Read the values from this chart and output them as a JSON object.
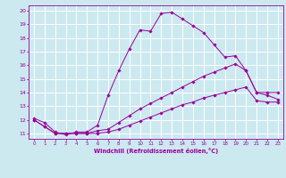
{
  "xlabel": "Windchill (Refroidissement éolien,°C)",
  "xlim": [
    -0.5,
    23.5
  ],
  "ylim": [
    10.6,
    20.4
  ],
  "xticks": [
    0,
    1,
    2,
    3,
    4,
    5,
    6,
    7,
    8,
    9,
    10,
    11,
    12,
    13,
    14,
    15,
    16,
    17,
    18,
    19,
    20,
    21,
    22,
    23
  ],
  "yticks": [
    11,
    12,
    13,
    14,
    15,
    16,
    17,
    18,
    19,
    20
  ],
  "bg_color": "#cce9f0",
  "line_color": "#990099",
  "grid_color": "#ffffff",
  "lines": [
    {
      "x": [
        0,
        1,
        2,
        3,
        4,
        5,
        6,
        7,
        8,
        9,
        10,
        11,
        12,
        13,
        14,
        15,
        16,
        17,
        18,
        19,
        20,
        21,
        22,
        23
      ],
      "y": [
        12.1,
        11.8,
        11.1,
        10.9,
        11.1,
        11.1,
        11.6,
        13.8,
        15.6,
        17.2,
        18.6,
        18.5,
        19.8,
        19.9,
        19.4,
        18.9,
        18.4,
        17.5,
        16.6,
        16.7,
        15.6,
        14.0,
        14.0,
        14.0
      ]
    },
    {
      "x": [
        0,
        1,
        2,
        3,
        4,
        5,
        6,
        7,
        8,
        9,
        10,
        11,
        12,
        13,
        14,
        15,
        16,
        17,
        18,
        19,
        20,
        21,
        22,
        23
      ],
      "y": [
        12.0,
        11.5,
        11.0,
        11.0,
        11.0,
        11.0,
        11.2,
        11.3,
        11.8,
        12.3,
        12.8,
        13.2,
        13.6,
        14.0,
        14.4,
        14.8,
        15.2,
        15.5,
        15.8,
        16.1,
        15.6,
        14.0,
        13.8,
        13.5
      ]
    },
    {
      "x": [
        0,
        1,
        2,
        3,
        4,
        5,
        6,
        7,
        8,
        9,
        10,
        11,
        12,
        13,
        14,
        15,
        16,
        17,
        18,
        19,
        20,
        21,
        22,
        23
      ],
      "y": [
        12.0,
        11.5,
        11.0,
        11.0,
        11.0,
        11.0,
        11.0,
        11.1,
        11.3,
        11.6,
        11.9,
        12.2,
        12.5,
        12.8,
        13.1,
        13.3,
        13.6,
        13.8,
        14.0,
        14.2,
        14.4,
        13.4,
        13.3,
        13.3
      ]
    }
  ]
}
